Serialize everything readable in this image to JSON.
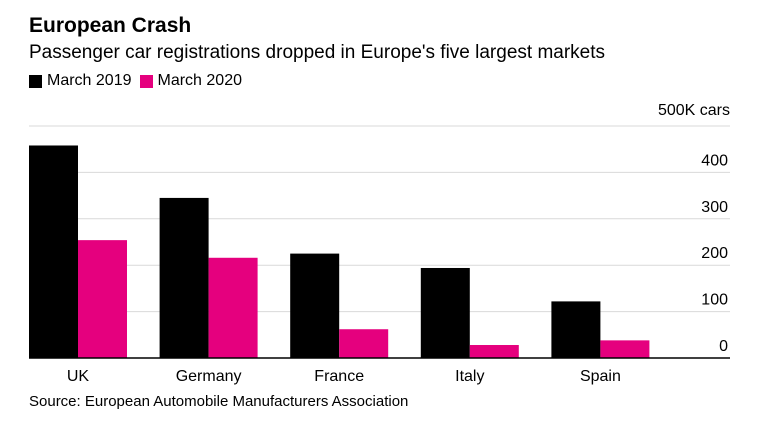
{
  "chart_data": {
    "type": "bar",
    "title": "European Crash",
    "subtitle": "Passenger car registrations dropped in Europe's five largest markets",
    "categories": [
      "UK",
      "Germany",
      "France",
      "Italy",
      "Spain"
    ],
    "series": [
      {
        "name": "March 2019",
        "color": "#000000",
        "values": [
          458,
          345,
          225,
          194,
          122
        ]
      },
      {
        "name": "March 2020",
        "color": "#e5007e",
        "values": [
          254,
          216,
          62,
          28,
          38
        ]
      }
    ],
    "y_unit_label": "500K cars",
    "y_ticks": [
      0,
      100,
      200,
      300,
      400
    ],
    "ylim": [
      0,
      500
    ],
    "grid": true,
    "legend_position": "top-left",
    "source": "Source: European Automobile Manufacturers Association"
  }
}
